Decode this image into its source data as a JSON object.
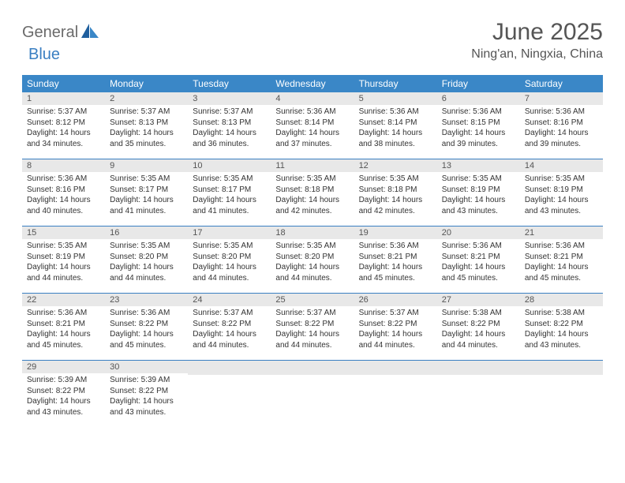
{
  "logo": {
    "part1": "General",
    "part2": "Blue"
  },
  "title": "June 2025",
  "location": "Ning'an, Ningxia, China",
  "colors": {
    "header_bg": "#3a87c7",
    "header_text": "#ffffff",
    "line": "#3a7fc2",
    "daynum_bg": "#e8e8e8",
    "text": "#333333",
    "logo_gray": "#6a6a6a",
    "logo_blue": "#3a7fc2"
  },
  "day_names": [
    "Sunday",
    "Monday",
    "Tuesday",
    "Wednesday",
    "Thursday",
    "Friday",
    "Saturday"
  ],
  "weeks": [
    [
      {
        "n": "1",
        "sr": "5:37 AM",
        "ss": "8:12 PM",
        "dl": "14 hours and 34 minutes."
      },
      {
        "n": "2",
        "sr": "5:37 AM",
        "ss": "8:13 PM",
        "dl": "14 hours and 35 minutes."
      },
      {
        "n": "3",
        "sr": "5:37 AM",
        "ss": "8:13 PM",
        "dl": "14 hours and 36 minutes."
      },
      {
        "n": "4",
        "sr": "5:36 AM",
        "ss": "8:14 PM",
        "dl": "14 hours and 37 minutes."
      },
      {
        "n": "5",
        "sr": "5:36 AM",
        "ss": "8:14 PM",
        "dl": "14 hours and 38 minutes."
      },
      {
        "n": "6",
        "sr": "5:36 AM",
        "ss": "8:15 PM",
        "dl": "14 hours and 39 minutes."
      },
      {
        "n": "7",
        "sr": "5:36 AM",
        "ss": "8:16 PM",
        "dl": "14 hours and 39 minutes."
      }
    ],
    [
      {
        "n": "8",
        "sr": "5:36 AM",
        "ss": "8:16 PM",
        "dl": "14 hours and 40 minutes."
      },
      {
        "n": "9",
        "sr": "5:35 AM",
        "ss": "8:17 PM",
        "dl": "14 hours and 41 minutes."
      },
      {
        "n": "10",
        "sr": "5:35 AM",
        "ss": "8:17 PM",
        "dl": "14 hours and 41 minutes."
      },
      {
        "n": "11",
        "sr": "5:35 AM",
        "ss": "8:18 PM",
        "dl": "14 hours and 42 minutes."
      },
      {
        "n": "12",
        "sr": "5:35 AM",
        "ss": "8:18 PM",
        "dl": "14 hours and 42 minutes."
      },
      {
        "n": "13",
        "sr": "5:35 AM",
        "ss": "8:19 PM",
        "dl": "14 hours and 43 minutes."
      },
      {
        "n": "14",
        "sr": "5:35 AM",
        "ss": "8:19 PM",
        "dl": "14 hours and 43 minutes."
      }
    ],
    [
      {
        "n": "15",
        "sr": "5:35 AM",
        "ss": "8:19 PM",
        "dl": "14 hours and 44 minutes."
      },
      {
        "n": "16",
        "sr": "5:35 AM",
        "ss": "8:20 PM",
        "dl": "14 hours and 44 minutes."
      },
      {
        "n": "17",
        "sr": "5:35 AM",
        "ss": "8:20 PM",
        "dl": "14 hours and 44 minutes."
      },
      {
        "n": "18",
        "sr": "5:35 AM",
        "ss": "8:20 PM",
        "dl": "14 hours and 44 minutes."
      },
      {
        "n": "19",
        "sr": "5:36 AM",
        "ss": "8:21 PM",
        "dl": "14 hours and 45 minutes."
      },
      {
        "n": "20",
        "sr": "5:36 AM",
        "ss": "8:21 PM",
        "dl": "14 hours and 45 minutes."
      },
      {
        "n": "21",
        "sr": "5:36 AM",
        "ss": "8:21 PM",
        "dl": "14 hours and 45 minutes."
      }
    ],
    [
      {
        "n": "22",
        "sr": "5:36 AM",
        "ss": "8:21 PM",
        "dl": "14 hours and 45 minutes."
      },
      {
        "n": "23",
        "sr": "5:36 AM",
        "ss": "8:22 PM",
        "dl": "14 hours and 45 minutes."
      },
      {
        "n": "24",
        "sr": "5:37 AM",
        "ss": "8:22 PM",
        "dl": "14 hours and 44 minutes."
      },
      {
        "n": "25",
        "sr": "5:37 AM",
        "ss": "8:22 PM",
        "dl": "14 hours and 44 minutes."
      },
      {
        "n": "26",
        "sr": "5:37 AM",
        "ss": "8:22 PM",
        "dl": "14 hours and 44 minutes."
      },
      {
        "n": "27",
        "sr": "5:38 AM",
        "ss": "8:22 PM",
        "dl": "14 hours and 44 minutes."
      },
      {
        "n": "28",
        "sr": "5:38 AM",
        "ss": "8:22 PM",
        "dl": "14 hours and 43 minutes."
      }
    ],
    [
      {
        "n": "29",
        "sr": "5:39 AM",
        "ss": "8:22 PM",
        "dl": "14 hours and 43 minutes."
      },
      {
        "n": "30",
        "sr": "5:39 AM",
        "ss": "8:22 PM",
        "dl": "14 hours and 43 minutes."
      },
      null,
      null,
      null,
      null,
      null
    ]
  ],
  "labels": {
    "sunrise": "Sunrise:",
    "sunset": "Sunset:",
    "daylight": "Daylight:"
  }
}
